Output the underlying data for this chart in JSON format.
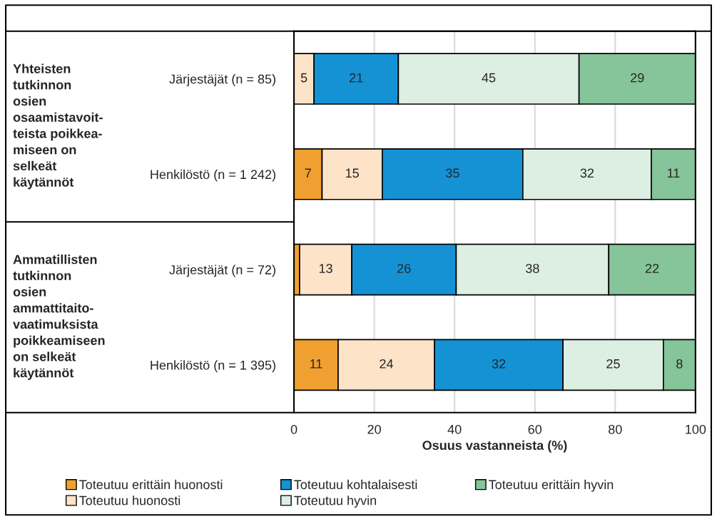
{
  "chart_data": {
    "type": "bar",
    "orientation": "horizontal",
    "stacked": true,
    "categories": [
      "Järjestäjät (n = 85)",
      "Henkilöstö (n = 1 242)",
      "Järjestäjät (n = 72)",
      "Henkilöstö (n = 1 395)"
    ],
    "series": [
      {
        "name": "Toteutuu erittäin huonosti",
        "color": "#f0a030",
        "values": [
          0,
          7,
          1.4,
          11
        ],
        "value_labels": [
          null,
          "7",
          null,
          "11"
        ]
      },
      {
        "name": "Toteutuu huonosti",
        "color": "#fde3c8",
        "values": [
          5,
          15,
          13,
          24
        ],
        "value_labels": [
          "5",
          "15",
          "13",
          "24"
        ]
      },
      {
        "name": "Toteutuu kohtalaisesti",
        "color": "#1592d4",
        "values": [
          21,
          35,
          26,
          32
        ],
        "value_labels": [
          "21",
          "35",
          "26",
          "32"
        ]
      },
      {
        "name": "Toteutuu hyvin",
        "color": "#ddeee2",
        "values": [
          45,
          32,
          38,
          25
        ],
        "value_labels": [
          "45",
          "32",
          "38",
          "25"
        ]
      },
      {
        "name": "Toteutuu erittäin hyvin",
        "color": "#86c49a",
        "values": [
          29,
          11,
          22,
          8
        ],
        "value_labels": [
          "29",
          "11",
          "22",
          "8"
        ]
      }
    ],
    "xlabel": "Osuus vastanneista (%)",
    "xlim": [
      0,
      100
    ],
    "xticks": [
      0,
      20,
      40,
      60,
      80,
      100
    ],
    "grid": "x",
    "legend": "bottom",
    "annotations": [
      "Yhteisten\ntutkinnon\nosien\nosaamistavoit-\nteista poikkea-\nmiseen on\nselkeät\nkäytännöt",
      "Ammatillisten\ntutkinnon\nosien\nammattitaito-\nvaatimuksista\npoikkeamiseen\non selkeät\nkäytännöt"
    ]
  }
}
